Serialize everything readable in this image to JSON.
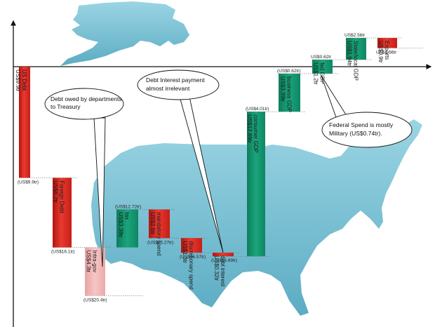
{
  "chart_data": {
    "type": "waterfall",
    "unit": "US$ trillion",
    "bars": [
      {
        "id": "us-debt",
        "label": "US Debt",
        "value_label": "US$9.9tr",
        "start": 0,
        "end": -9.9,
        "color": "red"
      },
      {
        "id": "foreign-debt",
        "label": "Foreign Debt",
        "value_label": "US$6.2tr",
        "start": -9.9,
        "end": -16.1,
        "color": "red"
      },
      {
        "id": "intra-gov",
        "label": "Intra-gov",
        "value_label": "US$4.3tr",
        "start": -16.1,
        "end": -20.4,
        "color": "lightred"
      },
      {
        "id": "tax",
        "label": "tax",
        "value_label": "US$3.38tr",
        "start": -16.1,
        "end": -12.72,
        "color": "green"
      },
      {
        "id": "mandatory",
        "label": "mandatory spend",
        "value_label": "US$2.6tr",
        "start": -12.72,
        "end": -15.27,
        "color": "red"
      },
      {
        "id": "discretionary",
        "label": "discretionary spend",
        "value_label": "US$1.3tr",
        "start": -15.27,
        "end": -16.57,
        "color": "red"
      },
      {
        "id": "debt-interest",
        "label": "debt interest",
        "value_label": "US$0.32tr",
        "start": -16.57,
        "end": -16.89,
        "color": "red"
      },
      {
        "id": "consumer-gdp",
        "label": "consumer GDP",
        "value_label": "US$12.69tr",
        "start": -16.89,
        "end": -4.01,
        "color": "green"
      },
      {
        "id": "business-gdp",
        "label": "business GDP",
        "value_label": "US$3.39tr",
        "start": -4.01,
        "end": -0.62,
        "color": "green"
      },
      {
        "id": "fed-gdp",
        "label": "fed GDP",
        "value_label": "US$1.2tr",
        "start": -0.62,
        "end": 0.62,
        "color": "green"
      },
      {
        "id": "state-local-gdp",
        "label": "State/local GDP",
        "value_label": "US$1.94tr",
        "start": 0.62,
        "end": 2.56,
        "color": "green"
      },
      {
        "id": "exports",
        "label": "Exports",
        "value_label": "US$0.9tr",
        "start": 2.56,
        "end": 1.66,
        "color": "red"
      }
    ],
    "running_totals": [
      {
        "after": "us-debt",
        "text": "(US$9.9tr)"
      },
      {
        "after": "foreign-debt",
        "text": "(US$16.1tr)"
      },
      {
        "after": "intra-gov",
        "text": "(US$20.4tr)"
      },
      {
        "after": "tax",
        "text": "(US$12.72tr)"
      },
      {
        "after": "mandatory",
        "text": "(US$15.27tr)"
      },
      {
        "after": "discretionary",
        "text": "(US$16.57tr)"
      },
      {
        "after": "debt-interest",
        "text": "(US$16.89tr)"
      },
      {
        "after": "consumer-gdp",
        "text": "(US$4.01tr)"
      },
      {
        "after": "business-gdp",
        "text": "(US$0.62tr)"
      },
      {
        "after": "fed-gdp",
        "text": "US$0.62tr"
      },
      {
        "after": "state-local-gdp",
        "text": "US$2.56tr"
      },
      {
        "after": "exports",
        "text": "US$1.66tr"
      }
    ],
    "annotations": [
      {
        "id": "treasury-note",
        "text_lines": [
          "Debt owed by departments",
          "to Treasury"
        ],
        "points_to": "intra-gov"
      },
      {
        "id": "interest-note",
        "text_lines": [
          "Debt Interest payment",
          "almost irrelevant"
        ],
        "points_to": "debt-interest"
      },
      {
        "id": "military-note",
        "text_lines": [
          "Federal Spend is mostly",
          "Military (US$0.74tr)."
        ],
        "points_to": "fed-gdp"
      }
    ],
    "colors": {
      "red": "#e32a22",
      "lightred": "#f2b4b4",
      "green": "#169a72"
    }
  }
}
